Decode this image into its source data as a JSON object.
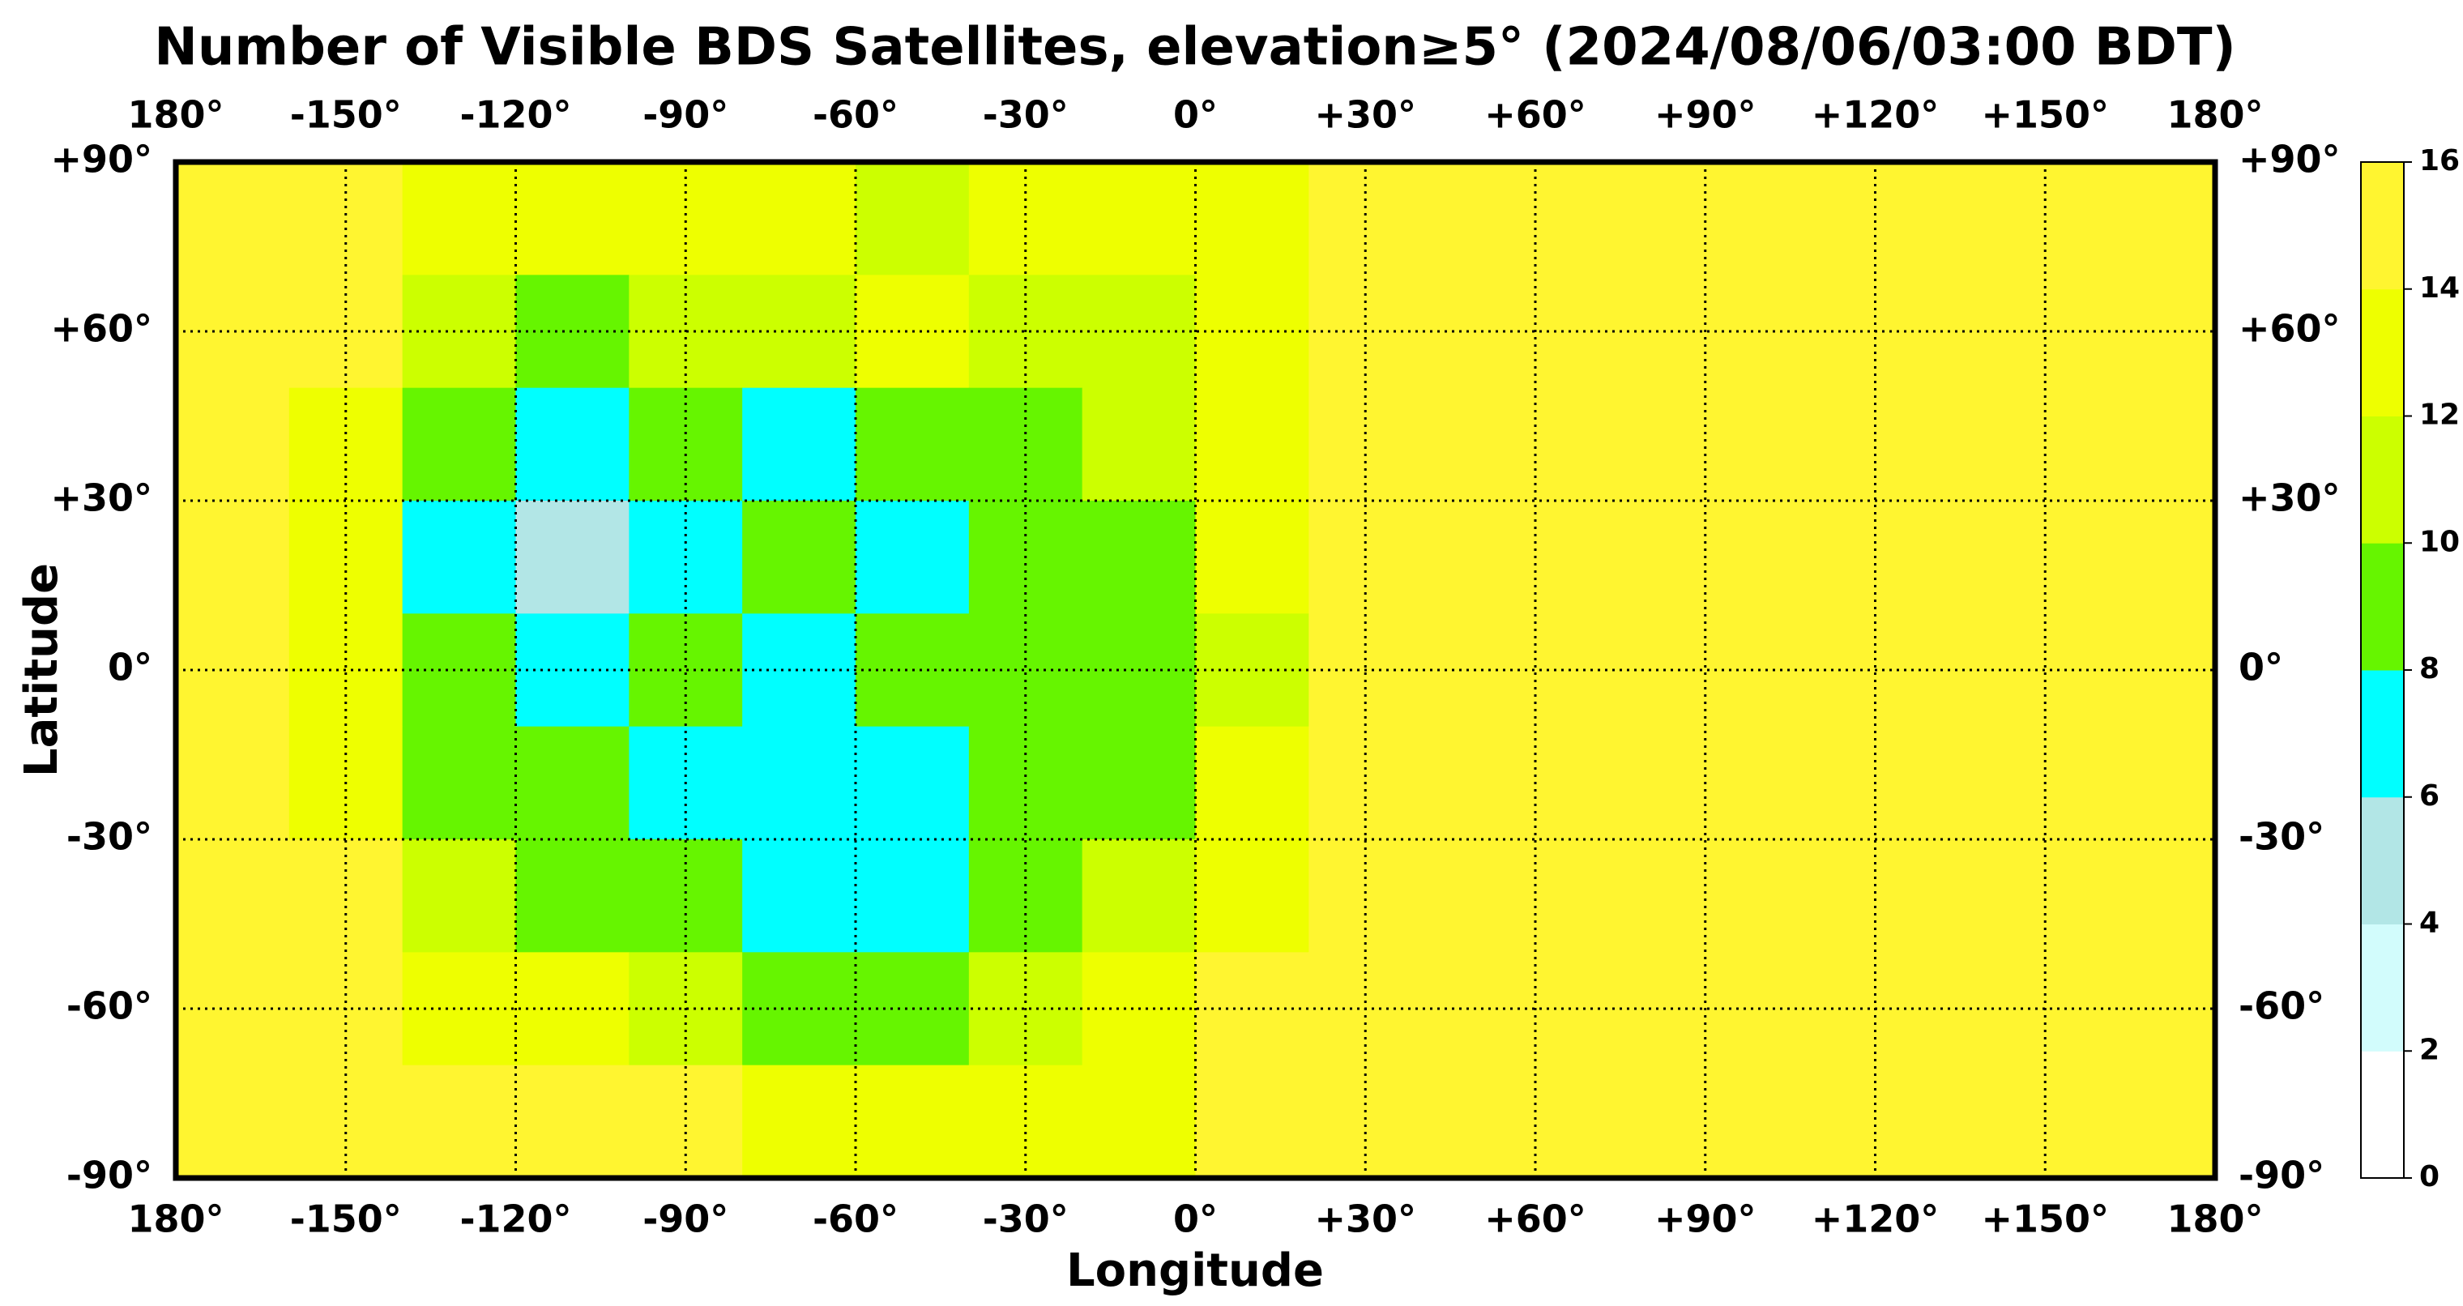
{
  "chart_data": {
    "type": "heatmap",
    "title": "Number of Visible BDS Satellites, elevation≥5° (2024/08/06/03:00 BDT)",
    "xlabel": "Longitude",
    "ylabel": "Latitude",
    "xlim": [
      -180,
      180
    ],
    "ylim": [
      -90,
      90
    ],
    "xticks": [
      {
        "value": -180,
        "label": "180°"
      },
      {
        "value": -150,
        "label": "-150°"
      },
      {
        "value": -120,
        "label": "-120°"
      },
      {
        "value": -90,
        "label": "-90°"
      },
      {
        "value": -60,
        "label": "-60°"
      },
      {
        "value": -30,
        "label": "-30°"
      },
      {
        "value": 0,
        "label": "0°"
      },
      {
        "value": 30,
        "label": "+30°"
      },
      {
        "value": 60,
        "label": "+60°"
      },
      {
        "value": 90,
        "label": "+90°"
      },
      {
        "value": 120,
        "label": "+120°"
      },
      {
        "value": 150,
        "label": "+150°"
      },
      {
        "value": 180,
        "label": "180°"
      }
    ],
    "yticks": [
      {
        "value": 90,
        "label": "+90°"
      },
      {
        "value": 60,
        "label": "+60°"
      },
      {
        "value": 30,
        "label": "+30°"
      },
      {
        "value": 0,
        "label": "0°"
      },
      {
        "value": -30,
        "label": "-30°"
      },
      {
        "value": -60,
        "label": "-60°"
      },
      {
        "value": -90,
        "label": "-90°"
      }
    ],
    "grid": true,
    "lon_edges": [
      -180,
      -160,
      -140,
      -120,
      -100,
      -80,
      -60,
      -40,
      -20,
      0,
      20,
      40,
      60,
      80,
      100,
      120,
      140,
      160,
      180
    ],
    "lat_edges": [
      90,
      70,
      50,
      30,
      10,
      -10,
      -30,
      -50,
      -70,
      -90
    ],
    "values": [
      [
        15,
        15,
        13,
        13,
        13,
        13,
        11,
        13,
        13,
        13,
        15,
        15,
        15,
        15,
        15,
        15,
        15,
        15
      ],
      [
        15,
        15,
        11,
        9,
        11,
        11,
        13,
        11,
        11,
        13,
        15,
        15,
        15,
        15,
        15,
        15,
        15,
        15
      ],
      [
        15,
        13,
        9,
        7,
        9,
        7,
        9,
        9,
        11,
        13,
        15,
        15,
        15,
        15,
        15,
        15,
        15,
        15
      ],
      [
        15,
        13,
        7,
        5,
        7,
        9,
        7,
        9,
        9,
        13,
        15,
        15,
        15,
        15,
        15,
        15,
        15,
        15
      ],
      [
        15,
        13,
        9,
        7,
        9,
        7,
        9,
        9,
        9,
        11,
        15,
        15,
        15,
        15,
        15,
        15,
        15,
        15
      ],
      [
        15,
        13,
        9,
        9,
        7,
        7,
        7,
        9,
        9,
        13,
        15,
        15,
        15,
        15,
        15,
        15,
        15,
        15
      ],
      [
        15,
        15,
        11,
        9,
        9,
        7,
        7,
        9,
        11,
        13,
        15,
        15,
        15,
        15,
        15,
        15,
        15,
        15
      ],
      [
        15,
        15,
        13,
        13,
        11,
        9,
        9,
        11,
        13,
        15,
        15,
        15,
        15,
        15,
        15,
        15,
        15,
        15
      ],
      [
        15,
        15,
        15,
        15,
        15,
        13,
        13,
        13,
        13,
        15,
        15,
        15,
        15,
        15,
        15,
        15,
        15,
        15
      ]
    ],
    "levels": [
      0,
      2,
      4,
      6,
      8,
      10,
      12,
      14,
      16
    ],
    "colors": [
      "#ffffff",
      "#d2fcfc",
      "#b2e6e6",
      "#00ffff",
      "#66f500",
      "#ccff00",
      "#eeff00",
      "#fff530"
    ]
  }
}
